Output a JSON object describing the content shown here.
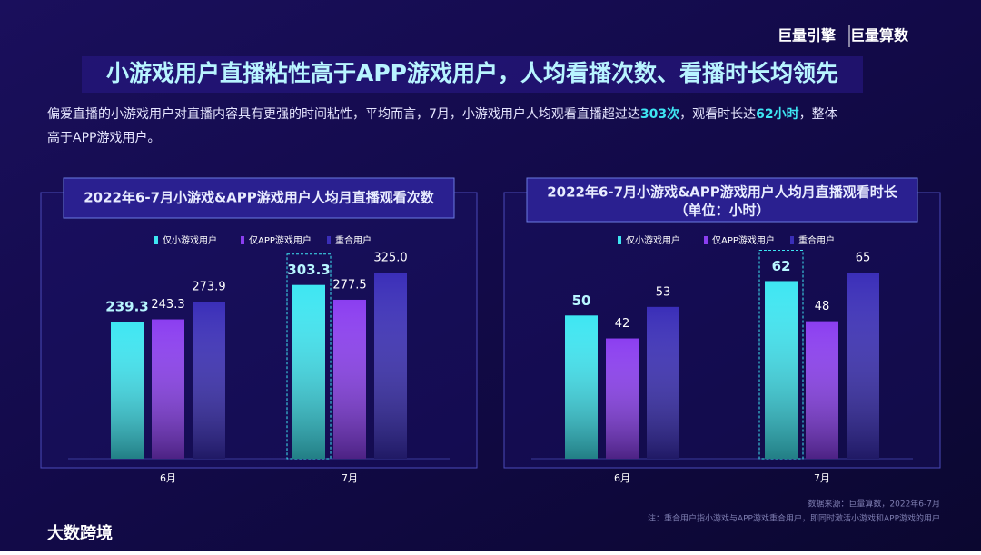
{
  "header": {
    "logo_left": "巨量引擎",
    "logo_right": "巨量算数",
    "title": "小游戏用户直播粘性高于APP游戏用户，人均看播次数、看播时长均领先",
    "subtitle_parts": [
      "偏爱直播的小游戏用户对直播内容具有更强的时间粘性，平均而言，7月，小游戏用户人均观看直播超过达",
      "303次",
      "，观看时长达",
      "62小时",
      "，整体"
    ],
    "subtitle_line2": "高于APP游戏用户。"
  },
  "chart_data": [
    {
      "type": "bar",
      "title": "2022年6-7月小游戏&APP游戏用户人均月直播观看次数",
      "categories": [
        "6月",
        "7月"
      ],
      "highlight_index": 1,
      "series": [
        {
          "name": "仅小游戏用户",
          "color": "#3ee6f2",
          "values": [
            239.3,
            303.3
          ]
        },
        {
          "name": "仅APP游戏用户",
          "color": "#8b3ef0",
          "values": [
            243.3,
            277.5
          ]
        },
        {
          "name": "重合用户",
          "color": "#3a2eb8",
          "values": [
            273.9,
            325.0
          ],
          "value_labels": [
            "273.9",
            "325.0"
          ]
        }
      ]
    },
    {
      "type": "bar",
      "title": "2022年6-7月小游戏&APP游戏用户人均月直播观看时长",
      "subtitle": "（单位：小时）",
      "categories": [
        "6月",
        "7月"
      ],
      "highlight_index": 1,
      "series": [
        {
          "name": "仅小游戏用户",
          "color": "#3ee6f2",
          "values": [
            50,
            62
          ]
        },
        {
          "name": "仅APP游戏用户",
          "color": "#8b3ef0",
          "values": [
            42,
            48
          ]
        },
        {
          "name": "重合用户",
          "color": "#3a2eb8",
          "values": [
            53,
            65
          ]
        }
      ]
    }
  ],
  "footer": {
    "source": "数据来源：巨量算数，2022年6-7月",
    "note": "注：重合用户指小游戏与APP游戏重合用户，即同时激活小游戏和APP游戏的用户",
    "brand": "大数跨境"
  }
}
